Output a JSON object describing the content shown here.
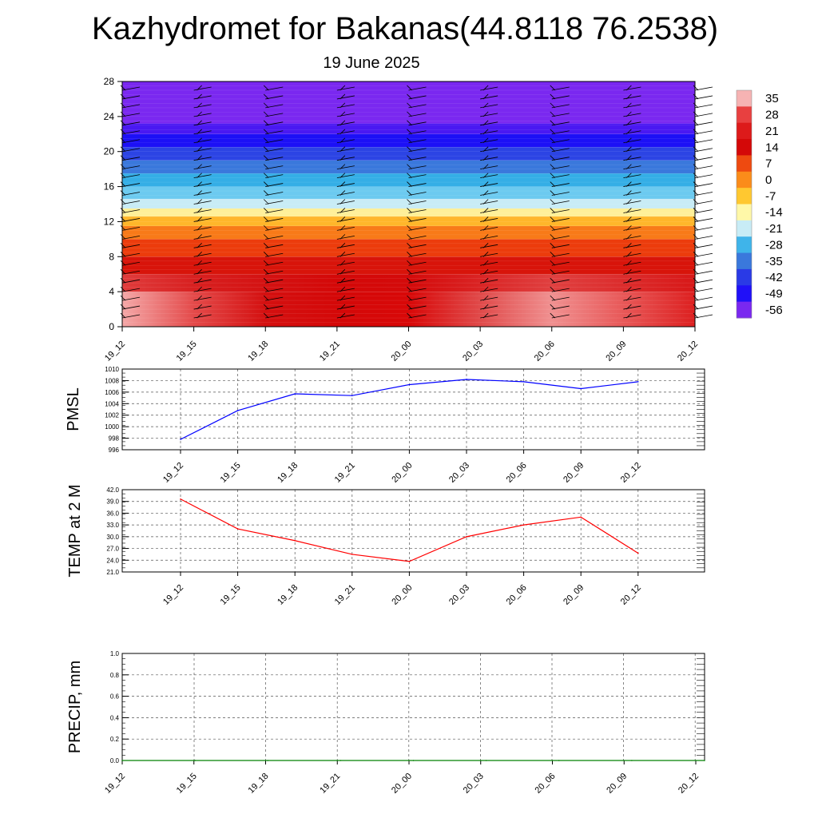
{
  "title": "Kazhydromet for Bakanas(44.8118 76.2538)",
  "subtitle": "19 June 2025",
  "chart_data": [
    {
      "type": "heatmap",
      "y_ticks": [
        "0",
        "4",
        "8",
        "12",
        "16",
        "20",
        "24",
        "28"
      ],
      "ylim": [
        0,
        28
      ],
      "x_ticks": [
        "19_12",
        "19_15",
        "19_18",
        "19_21",
        "20_00",
        "20_03",
        "20_06",
        "20_09",
        "20_12"
      ],
      "colorbar_labels": [
        "35",
        "28",
        "21",
        "14",
        "7",
        "0",
        "-7",
        "-14",
        "-21",
        "-28",
        "-35",
        "-42",
        "-49",
        "-56"
      ],
      "colorbar_range": [
        -60,
        38
      ],
      "colorbar_colors": [
        "#f6b3b3",
        "#e84040",
        "#dd1a1a",
        "#d40808",
        "#ee4a10",
        "#fb8c1a",
        "#ffc830",
        "#fff8a8",
        "#c8ecf6",
        "#3fb4ea",
        "#3a78dc",
        "#2a3ae6",
        "#2010f8",
        "#7a28f0"
      ],
      "bands": [
        {
          "from": 0,
          "to": 4,
          "colors": [
            "#f4a8a8",
            "#e44a4a",
            "#d41010",
            "#d40808",
            "#d80808",
            "#e04a4a",
            "#f09090",
            "#e85858",
            "#dd2020"
          ]
        },
        {
          "from": 4,
          "to": 6,
          "colors": [
            "#e03c3c",
            "#d82020",
            "#d41212",
            "#d40808",
            "#d40a0a",
            "#da2424",
            "#e04040",
            "#dc2c2c",
            "#d81818"
          ]
        },
        {
          "from": 6,
          "to": 8,
          "color": "#d8140a"
        },
        {
          "from": 8,
          "to": 10,
          "color": "#ec3c0c"
        },
        {
          "from": 10,
          "to": 11.5,
          "color": "#f87a18"
        },
        {
          "from": 11.5,
          "to": 12.6,
          "color": "#ffb62a"
        },
        {
          "from": 12.6,
          "to": 13.5,
          "color": "#fff098"
        },
        {
          "from": 13.5,
          "to": 14.6,
          "color": "#c8ecf6"
        },
        {
          "from": 14.6,
          "to": 16,
          "color": "#6ccaf0"
        },
        {
          "from": 16,
          "to": 17.5,
          "color": "#34aee6"
        },
        {
          "from": 17.5,
          "to": 19,
          "color": "#3a78dc"
        },
        {
          "from": 19,
          "to": 20.5,
          "color": "#2c44e4"
        },
        {
          "from": 20.5,
          "to": 22,
          "color": "#1c10f6"
        },
        {
          "from": 22,
          "to": 23.2,
          "color": "#4a18f2"
        },
        {
          "from": 23.2,
          "to": 28,
          "color": "#7a28f0"
        }
      ],
      "wind_columns": [
        "19_12",
        "19_15",
        "19_18",
        "19_21",
        "20_00",
        "20_03",
        "20_06",
        "20_09",
        "20_12"
      ]
    },
    {
      "type": "line",
      "ylabel": "PMSL",
      "x": [
        "19_12",
        "19_15",
        "19_18",
        "19_21",
        "20_00",
        "20_03",
        "20_06",
        "20_09",
        "20_12"
      ],
      "y_ticks": [
        "996",
        "998",
        "1000",
        "1002",
        "1004",
        "1006",
        "1008",
        "1010"
      ],
      "ylim": [
        996,
        1010
      ],
      "series": [
        {
          "values": [
            997.8,
            1002.8,
            1005.7,
            1005.4,
            1007.3,
            1008.2,
            1007.8,
            1006.6,
            1007.8
          ],
          "color": "#0000ff"
        }
      ]
    },
    {
      "type": "line",
      "ylabel": "TEMP at 2 M",
      "x": [
        "19_12",
        "19_15",
        "19_18",
        "19_21",
        "20_00",
        "20_03",
        "20_06",
        "20_09",
        "20_12"
      ],
      "y_ticks": [
        "21.0",
        "24.0",
        "27.0",
        "30.0",
        "33.0",
        "36.0",
        "39.0",
        "42.0"
      ],
      "ylim": [
        21,
        42
      ],
      "series": [
        {
          "values": [
            39.6,
            32.0,
            29.0,
            25.5,
            23.7,
            30.0,
            33.0,
            35.0,
            25.8
          ],
          "color": "#ff0000"
        }
      ]
    },
    {
      "type": "line",
      "ylabel": "PRECIP, mm",
      "x": [
        "19_12",
        "19_15",
        "19_18",
        "19_21",
        "20_00",
        "20_03",
        "20_06",
        "20_09",
        "20_12"
      ],
      "y_ticks": [
        "0.0",
        "0.2",
        "0.4",
        "0.6",
        "0.8",
        "1.0"
      ],
      "ylim": [
        0,
        1
      ],
      "series": [
        {
          "values": [
            0,
            0,
            0,
            0,
            0,
            0,
            0,
            0,
            0
          ],
          "color": "#008000"
        }
      ]
    }
  ]
}
